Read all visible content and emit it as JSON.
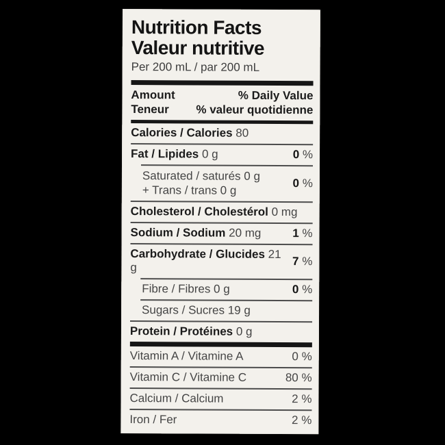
{
  "background_color": "#000000",
  "percent_sign": "%",
  "label": {
    "title_en": "Nutrition Facts",
    "title_fr": "Valeur nutritive",
    "serving": "Per 200 mL / par 200 mL",
    "header": {
      "amount_en": "Amount",
      "amount_fr": "Teneur",
      "dv_en": "% Daily Value",
      "dv_fr": "% valeur quotidienne"
    },
    "calories": {
      "bold": "Calories / Calories",
      "amount": "80"
    },
    "fat": {
      "bold": "Fat / Lipides",
      "amount": "0 g",
      "dv": "0"
    },
    "saturated": {
      "line1": "Saturated / saturés 0 g",
      "line2": "+ Trans / trans 0 g",
      "dv": "0"
    },
    "cholesterol": {
      "bold": "Cholesterol / Cholestérol",
      "amount": "0 mg"
    },
    "sodium": {
      "bold": "Sodium / Sodium",
      "amount": "20 mg",
      "dv": "1"
    },
    "carbohydrate": {
      "bold": "Carbohydrate / Glucides",
      "amount": "21 g",
      "dv": "7"
    },
    "fibre": {
      "label": "Fibre / Fibres 0 g",
      "dv": "0"
    },
    "sugars": {
      "label": "Sugars / Sucres 19 g"
    },
    "protein": {
      "bold": "Protein / Protéines",
      "amount": "0 g"
    },
    "micronutrients": [
      {
        "label": "Vitamin A / Vitamine A",
        "dv": "0"
      },
      {
        "label": "Vitamin C / Vitamine C",
        "dv": "80"
      },
      {
        "label": "Calcium / Calcium",
        "dv": "2"
      },
      {
        "label": "Iron / Fer",
        "dv": "2"
      }
    ]
  }
}
